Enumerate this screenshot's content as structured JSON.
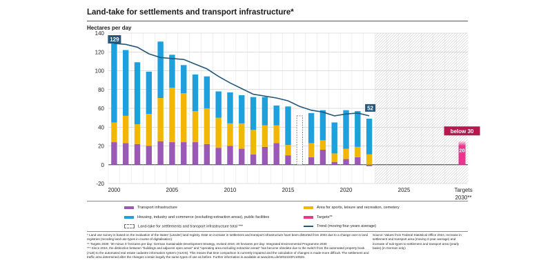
{
  "chart_data": {
    "type": "bar",
    "title": "Land-take for settlements and transport infrastructure*",
    "ylabel": "Hectares per day",
    "xlabel": "",
    "ylim": [
      -20,
      140
    ],
    "yticks": [
      -20,
      0,
      20,
      40,
      60,
      80,
      100,
      120,
      140
    ],
    "xtick_labels": [
      "2000",
      "2005",
      "2010",
      "2015",
      "2020",
      "2025"
    ],
    "target_label": [
      "Targets",
      "2030**"
    ],
    "years": [
      2000,
      2001,
      2002,
      2003,
      2004,
      2005,
      2006,
      2007,
      2008,
      2009,
      2010,
      2011,
      2012,
      2013,
      2014,
      2015,
      2016,
      2017,
      2018,
      2019,
      2020,
      2021,
      2022
    ],
    "series": [
      {
        "name": "Transport infrastructure",
        "color": "#9b59b6",
        "values": [
          24,
          23,
          22,
          20,
          25,
          24,
          24,
          24,
          22,
          18,
          20,
          17,
          11,
          19,
          23,
          10,
          null,
          8,
          16,
          3,
          6,
          8,
          0
        ]
      },
      {
        "name": "Area for sports, leisure and recreation, cemetery",
        "color": "#f2b705",
        "values": [
          21,
          29,
          21,
          34,
          46,
          58,
          52,
          33,
          38,
          32,
          24,
          27,
          26,
          23,
          19,
          11,
          null,
          15,
          10,
          9,
          11,
          11,
          11
        ]
      },
      {
        "name": "Housing, industry and commerce (excluding extraction areas), public facilities",
        "color": "#1ea0dc",
        "values": [
          85,
          70,
          66,
          45,
          60,
          35,
          30,
          39,
          34,
          28,
          33,
          30,
          35,
          30,
          21,
          41,
          null,
          32,
          32,
          33,
          41,
          38,
          38
        ]
      }
    ],
    "total_2016": {
      "name": "Land-take for settlements and transport infrastructure total ***",
      "value": 52
    },
    "trend": {
      "name": "Trend (moving four-years average)",
      "color": "#24577a",
      "values": [
        129,
        128,
        125,
        118,
        114,
        113,
        112,
        107,
        102,
        94,
        87,
        81,
        75,
        73,
        71,
        68,
        62,
        58,
        56,
        52,
        54,
        55,
        52
      ]
    },
    "trend_start_label": "129",
    "trend_end_label": "52",
    "targets": {
      "name": "Targets**",
      "color": "#e8378c",
      "value": 20,
      "label": "20",
      "range_label": "below 30"
    }
  },
  "legend": {
    "transport": "Transport infrastructure",
    "sports": "Area for sports, leisure and recreation, cemetery",
    "housing": "Housing, industry and commerce (excluding extraction areas), public facilities",
    "targets": "Targets**",
    "total": "Land-take for settlements and transport infrastructure total ***",
    "trend": "Trend (moving four-years average)"
  },
  "footnotes": {
    "f1": "* Land use survey is based on the evaluation of the states' (Länder) land registry. Date on increase in settlement and transport infrastructure have been distorted from 2004 due to a change over in land registries (recoding land use types in course of digitalisation).",
    "f2": "** Targets 2030: '30 minus X' hectares per day: German Sustainable Development Strategy, revised 2016; 20 hectares per day: Integrated Environmental Programme 2030",
    "f3": "*** Since 2016, the distinction between \"buildings and adjacent open areas\" and \"operating area excluding extraction areas\" has become obsolete due to the switch from the automated property book (ALB) to the automated real estate cadastre information system (ALKIS). This means that time comparison is currently impaired and the calculation of changes is made more difficult. The settlement and traffic area determined after the changes contain largely the same types of use as before. Further information is available at www.bmu.de/WS2220#c10929.",
    "source": "Source: Values from Federal Statistical Office 2024, Increase in settlement and transport area (moving 4-year average) and increase of sub-types to settlement and transport area (yearly basis) (in German only)"
  }
}
